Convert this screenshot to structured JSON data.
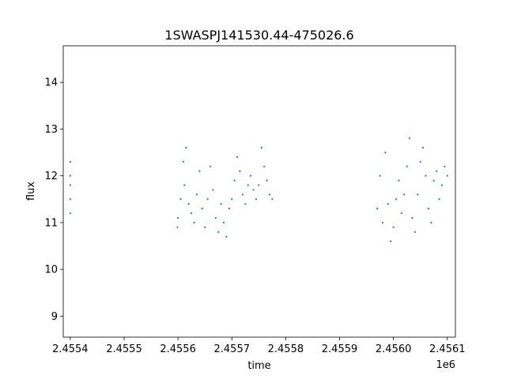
{
  "chart_data": {
    "type": "scatter",
    "title": "1SWASPJ141530.44-475026.6",
    "xlabel": "time",
    "ylabel": "flux",
    "x_offset_label": "1e6",
    "xlim": [
      2455387,
      2456115
    ],
    "ylim": [
      8.55,
      14.78
    ],
    "x_ticks": [
      2455400,
      2455500,
      2455600,
      2455700,
      2455800,
      2455900,
      2456000,
      2456100
    ],
    "x_tick_labels": [
      "2.4554",
      "2.4555",
      "2.4556",
      "2.4557",
      "2.4558",
      "2.4559",
      "2.4560",
      "2.4561"
    ],
    "y_ticks": [
      9,
      10,
      11,
      12,
      13,
      14
    ],
    "y_tick_labels": [
      "9",
      "10",
      "11",
      "12",
      "13",
      "14"
    ],
    "grid": false,
    "marker_color": "#1f77b4",
    "series": [
      {
        "x": [
          2455400,
          2455400,
          2455400,
          2455400,
          2455400,
          2455599,
          2455600,
          2455605,
          2455610,
          2455612,
          2455615,
          2455620,
          2455625,
          2455630,
          2455635,
          2455640,
          2455645,
          2455650,
          2455655,
          2455660,
          2455665,
          2455670,
          2455675,
          2455680,
          2455685,
          2455690,
          2455695,
          2455700,
          2455705,
          2455710,
          2455715,
          2455720,
          2455725,
          2455730,
          2455735,
          2455740,
          2455745,
          2455750,
          2455755,
          2455760,
          2455765,
          2455770,
          2455775,
          2455970,
          2455975,
          2455980,
          2455985,
          2455990,
          2455995,
          2456000,
          2456005,
          2456010,
          2456015,
          2456020,
          2456025,
          2456030,
          2456035,
          2456040,
          2456045,
          2456050,
          2456055,
          2456060,
          2456065,
          2456070,
          2456075,
          2456080,
          2456085,
          2456090,
          2456095,
          2456100
        ],
        "y": [
          11.2,
          11.5,
          11.8,
          12.0,
          12.3,
          10.9,
          11.1,
          11.5,
          12.3,
          11.8,
          12.6,
          11.4,
          11.2,
          11.0,
          11.6,
          12.1,
          11.3,
          10.9,
          11.5,
          12.2,
          11.7,
          11.1,
          10.8,
          11.4,
          11.0,
          10.7,
          11.3,
          11.5,
          11.9,
          12.4,
          12.1,
          11.6,
          11.4,
          11.8,
          12.0,
          11.7,
          11.5,
          11.8,
          12.6,
          12.2,
          11.9,
          11.6,
          11.5,
          11.3,
          12.0,
          11.0,
          12.5,
          11.4,
          10.6,
          10.9,
          11.5,
          11.9,
          11.2,
          11.6,
          12.2,
          12.8,
          11.1,
          10.8,
          11.6,
          12.3,
          12.6,
          12.0,
          11.3,
          11.0,
          11.9,
          12.1,
          11.5,
          11.8,
          12.2,
          12.0
        ]
      }
    ]
  }
}
